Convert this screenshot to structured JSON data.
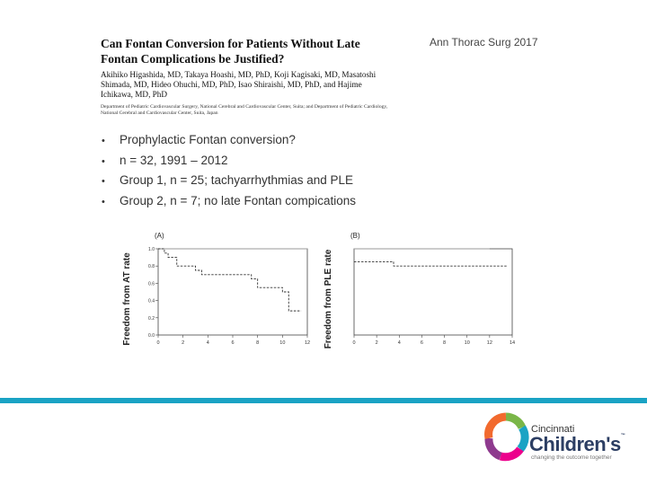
{
  "citation": "Ann Thorac Surg 2017",
  "paper": {
    "title": "Can Fontan Conversion for Patients Without Late Fontan Complications be Justified?",
    "authors": "Akihiko Higashida, MD, Takaya Hoashi, MD, PhD, Koji Kagisaki, MD, Masatoshi Shimada, MD, Hideo Ohuchi, MD, PhD, Isao Shiraishi, MD, PhD, and Hajime Ichikawa, MD, PhD",
    "affiliation": "Department of Pediatric Cardiovascular Surgery, National Cerebral and Cardiovascular Center, Suita; and Department of Pediatric Cardiology, National Cerebral and Cardiovascular Center, Suita, Japan"
  },
  "bullets": [
    "Prophylactic Fontan conversion?",
    "n = 32, 1991 – 2012",
    "Group 1, n = 25; tachyarrhythmias and PLE",
    "Group 2, n = 7; no late Fontan compications"
  ],
  "chart_data": [
    {
      "type": "line",
      "step": true,
      "panel_label": "(A)",
      "ylabel": "Freedom from AT rate",
      "xlim": [
        0,
        12
      ],
      "ylim": [
        0.0,
        1.0
      ],
      "x_ticks": [
        "0",
        "2",
        "4",
        "6",
        "8",
        "10",
        "12"
      ],
      "y_ticks": [
        "0.0",
        "0.2",
        "0.4",
        "0.6",
        "0.8",
        "1.0"
      ],
      "series": [
        {
          "style": "solid",
          "x": [
            0,
            12
          ],
          "y": [
            1.0,
            1.0
          ]
        },
        {
          "style": "dashed",
          "x": [
            0,
            0.5,
            0.8,
            1.5,
            3.0,
            3.5,
            7.5,
            8.0,
            10.0,
            10.5,
            11.5
          ],
          "y": [
            1.0,
            0.95,
            0.9,
            0.8,
            0.75,
            0.7,
            0.65,
            0.55,
            0.5,
            0.28,
            0.28
          ]
        }
      ]
    },
    {
      "type": "line",
      "step": true,
      "panel_label": "(B)",
      "ylabel": "Freedom from PLE rate",
      "xlim": [
        0,
        14
      ],
      "ylim": [
        0.0,
        1.0
      ],
      "x_ticks": [
        "0",
        "2",
        "4",
        "6",
        "8",
        "10",
        "12",
        "14"
      ],
      "y_ticks": [],
      "series": [
        {
          "style": "solid",
          "x": [
            0,
            12
          ],
          "y": [
            1.0,
            1.0
          ]
        },
        {
          "style": "dashed",
          "x": [
            0,
            3.5,
            13.5
          ],
          "y": [
            0.85,
            0.8,
            0.8
          ]
        }
      ]
    }
  ],
  "logo": {
    "line1": "Cincinnati",
    "line2": "Children's",
    "tagline": "changing the outcome together",
    "colors": [
      "#7ab648",
      "#f26a2e",
      "#1aa3c4",
      "#8e3a8e",
      "#ec008c"
    ]
  }
}
